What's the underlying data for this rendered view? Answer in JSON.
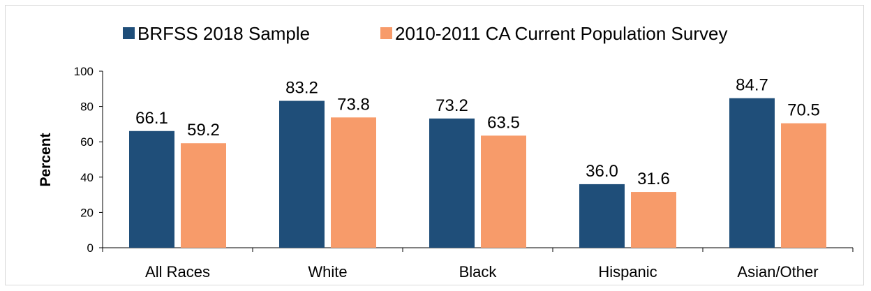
{
  "chart_data": {
    "type": "bar",
    "title": "",
    "xlabel": "",
    "ylabel": "Percent",
    "ylim": [
      0,
      100
    ],
    "yticks": [
      0,
      20,
      40,
      60,
      80,
      100
    ],
    "grid": false,
    "legend_position": "top",
    "categories": [
      "All Races",
      "White",
      "Black",
      "Hispanic",
      "Asian/Other"
    ],
    "series": [
      {
        "name": "BRFSS 2018 Sample",
        "color": "#1f4e79",
        "values": [
          66.1,
          83.2,
          73.2,
          36.0,
          84.7
        ],
        "labels": [
          "66.1",
          "83.2",
          "73.2",
          "36.0",
          "84.7"
        ]
      },
      {
        "name": "2010-2011 CA Current Population Survey",
        "color": "#f79b6a",
        "values": [
          59.2,
          73.8,
          63.5,
          31.6,
          70.5
        ],
        "labels": [
          "59.2",
          "73.8",
          "63.5",
          "31.6",
          "70.5"
        ]
      }
    ]
  }
}
